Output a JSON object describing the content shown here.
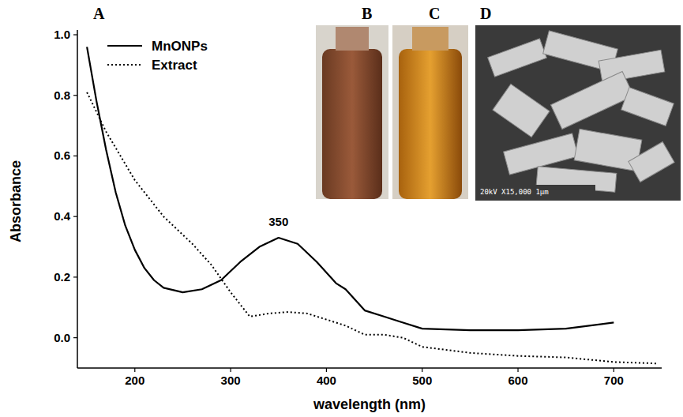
{
  "chart_data": {
    "type": "line",
    "xlabel": "wavelength (nm)",
    "ylabel": "Absorbance",
    "xlim": [
      140,
      750
    ],
    "ylim": [
      -0.1,
      1.0
    ],
    "xticks": [
      200,
      300,
      400,
      500,
      600,
      700
    ],
    "yticks": [
      {
        "value": 0.0,
        "label": "0.0"
      },
      0.2,
      0.4,
      0.6,
      0.8,
      {
        "value": 1.0,
        "label": "1.0"
      }
    ],
    "grid": false,
    "legend": "upper left",
    "panel_labels": [
      "A",
      "B",
      "C",
      "D"
    ],
    "sem_caption": "20kV X15,000 1μm",
    "annotations": [
      {
        "text": "350",
        "x": 350,
        "y": 0.37
      }
    ],
    "series": [
      {
        "name": "MnONPs",
        "color": "#000000",
        "line_style": "solid",
        "x": [
          150,
          160,
          170,
          180,
          190,
          200,
          210,
          220,
          230,
          250,
          270,
          290,
          310,
          330,
          350,
          370,
          390,
          410,
          420,
          440,
          460,
          480,
          500,
          550,
          600,
          650,
          700
        ],
        "values": [
          0.96,
          0.78,
          0.62,
          0.48,
          0.37,
          0.29,
          0.23,
          0.19,
          0.165,
          0.15,
          0.16,
          0.19,
          0.25,
          0.3,
          0.33,
          0.31,
          0.25,
          0.18,
          0.16,
          0.09,
          0.07,
          0.05,
          0.03,
          0.025,
          0.025,
          0.03,
          0.05
        ]
      },
      {
        "name": "Extract",
        "color": "#000000",
        "line_style": "dotted",
        "x": [
          150,
          170,
          200,
          230,
          260,
          280,
          300,
          320,
          340,
          360,
          380,
          400,
          420,
          440,
          460,
          480,
          500,
          550,
          600,
          650,
          700,
          745
        ],
        "values": [
          0.81,
          0.68,
          0.52,
          0.4,
          0.31,
          0.24,
          0.15,
          0.07,
          0.08,
          0.085,
          0.08,
          0.06,
          0.04,
          0.01,
          0.01,
          0.0,
          -0.03,
          -0.05,
          -0.06,
          -0.065,
          -0.08,
          -0.085
        ]
      }
    ]
  }
}
